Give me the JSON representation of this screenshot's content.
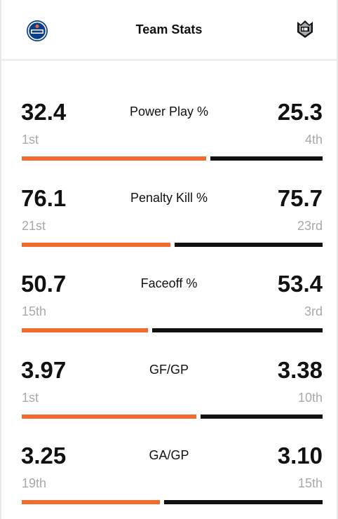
{
  "header": {
    "title": "Team Stats",
    "home_logo_icon": "edmonton-oilers-logo-icon",
    "away_logo_icon": "los-angeles-kings-logo-icon"
  },
  "colors": {
    "home_bar": "#f26a2c",
    "away_bar": "#111111",
    "rank_text": "#a8a8a8"
  },
  "stats": [
    {
      "label": "Power Play %",
      "home_value": "32.4",
      "home_rank": "1st",
      "away_value": "25.3",
      "away_rank": "4th",
      "home_share": 0.6216
    },
    {
      "label": "Penalty Kill %",
      "home_value": "76.1",
      "home_rank": "21st",
      "away_value": "75.7",
      "away_rank": "23rd",
      "home_share": 0.5012
    },
    {
      "label": "Faceoff %",
      "home_value": "50.7",
      "home_rank": "15th",
      "away_value": "53.4",
      "away_rank": "3rd",
      "home_share": 0.4266
    },
    {
      "label": "GF/GP",
      "home_value": "3.97",
      "home_rank": "1st",
      "away_value": "3.38",
      "away_rank": "10th",
      "home_share": 0.5886
    },
    {
      "label": "GA/GP",
      "home_value": "3.25",
      "home_rank": "19th",
      "away_value": "3.10",
      "away_rank": "15th",
      "home_share": 0.4661
    }
  ]
}
